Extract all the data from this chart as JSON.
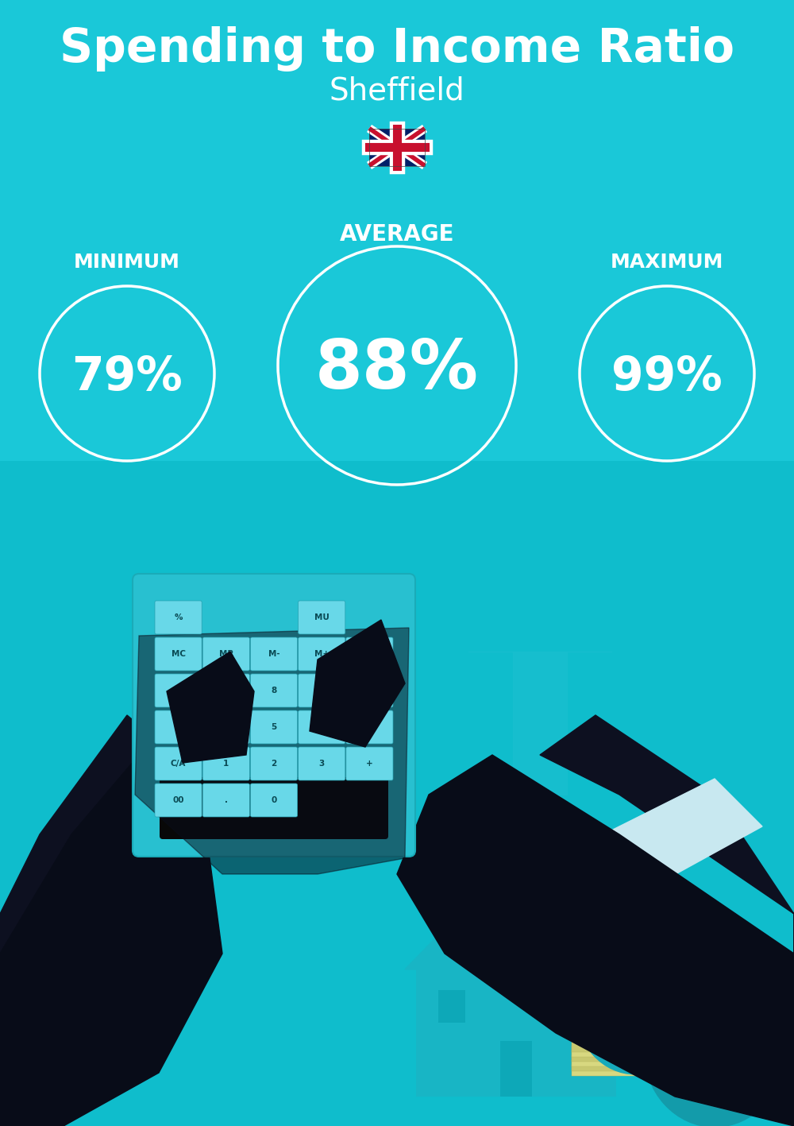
{
  "title": "Spending to Income Ratio",
  "subtitle": "Sheffield",
  "bg_color": "#1AC8D8",
  "title_color": "#FFFFFF",
  "subtitle_color": "#FFFFFF",
  "title_fontsize": 42,
  "subtitle_fontsize": 28,
  "label_min": "MINIMUM",
  "label_avg": "AVERAGE",
  "label_max": "MAXIMUM",
  "value_min": "79%",
  "value_avg": "88%",
  "value_max": "99%",
  "circle_color": "#FFFFFF",
  "circle_lw": 2.5,
  "value_color": "#FFFFFF",
  "label_color": "#FFFFFF",
  "fig_width": 10.0,
  "fig_height": 14.17,
  "dpi": 100
}
